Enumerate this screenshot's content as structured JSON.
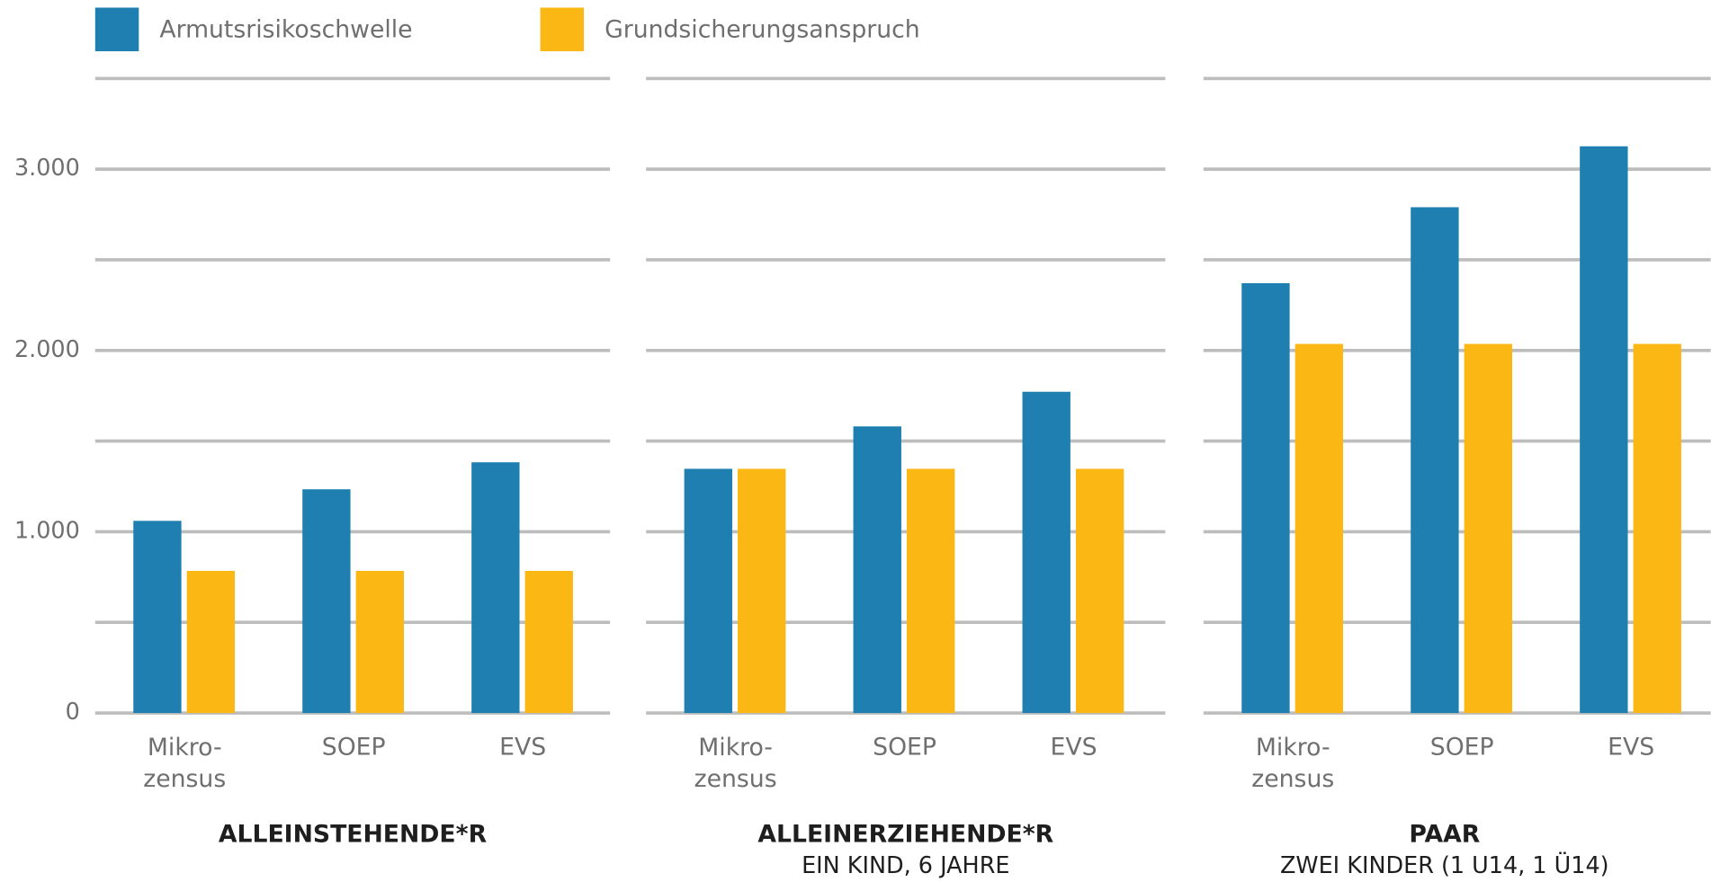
{
  "chart_data": {
    "type": "bar",
    "series": [
      {
        "name": "Armutsrisikoschwelle",
        "color": "#1f7fb0"
      },
      {
        "name": "Grundsicherungsanspruch",
        "color": "#fbb815"
      }
    ],
    "ylim": [
      0,
      3500
    ],
    "yticks": [
      0,
      {
        "value": 1000,
        "label": "1.000"
      },
      {
        "value": 2000,
        "label": "2.000"
      },
      {
        "value": 3000,
        "label": "3.000"
      }
    ],
    "minor_yticks": [
      500,
      1500,
      2500,
      3500
    ],
    "grid": true,
    "panels": [
      {
        "title": "ALLEINSTEHENDE*R",
        "categories": [
          "Mikro-\nzensus",
          "SOEP",
          "EVS"
        ],
        "series": [
          {
            "values": [
              1060,
              1234,
              1383
            ]
          },
          {
            "values": [
              784,
              784,
              784
            ]
          }
        ]
      },
      {
        "title": "ALLEINERZIEHENDE*R",
        "subtitle": "EIN KIND, 6 JAHRE",
        "categories": [
          "Mikro-\nzensus",
          "SOEP",
          "EVS"
        ],
        "series": [
          {
            "values": [
              1347,
              1581,
              1772
            ]
          },
          {
            "values": [
              1347,
              1347,
              1347
            ]
          }
        ]
      },
      {
        "title": "PAAR",
        "subtitle": "ZWEI KINDER (1 U14, 1 Ü14)",
        "categories": [
          "Mikro-\nzensus",
          "SOEP",
          "EVS"
        ],
        "series": [
          {
            "values": [
              2371,
              2790,
              3126
            ]
          },
          {
            "values": [
              2036,
              2036,
              2036
            ]
          }
        ]
      }
    ]
  }
}
